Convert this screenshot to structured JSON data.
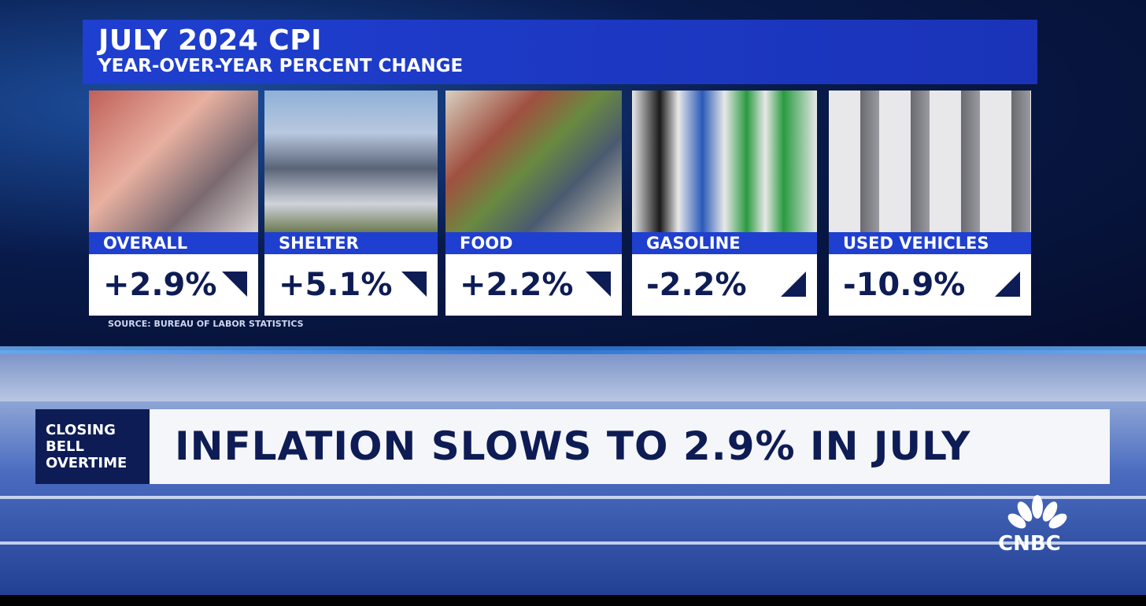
{
  "header": {
    "title": "JULY 2024 CPI",
    "subtitle": "YEAR-OVER-YEAR PERCENT CHANGE"
  },
  "cards": [
    {
      "label": "OVERALL",
      "value": "+2.9%"
    },
    {
      "label": "SHELTER",
      "value": "+5.1%"
    },
    {
      "label": "FOOD",
      "value": "+2.2%"
    },
    {
      "label": "GASOLINE",
      "value": "-2.2%"
    },
    {
      "label": "USED VEHICLES",
      "value": "-10.9%"
    }
  ],
  "source": "SOURCE: BUREAU OF LABOR STATISTICS",
  "lower_third": {
    "show": "CLOSING BELL OVERTIME",
    "headline": "INFLATION SLOWS TO 2.9% IN JULY"
  },
  "logo": "CNBC"
}
